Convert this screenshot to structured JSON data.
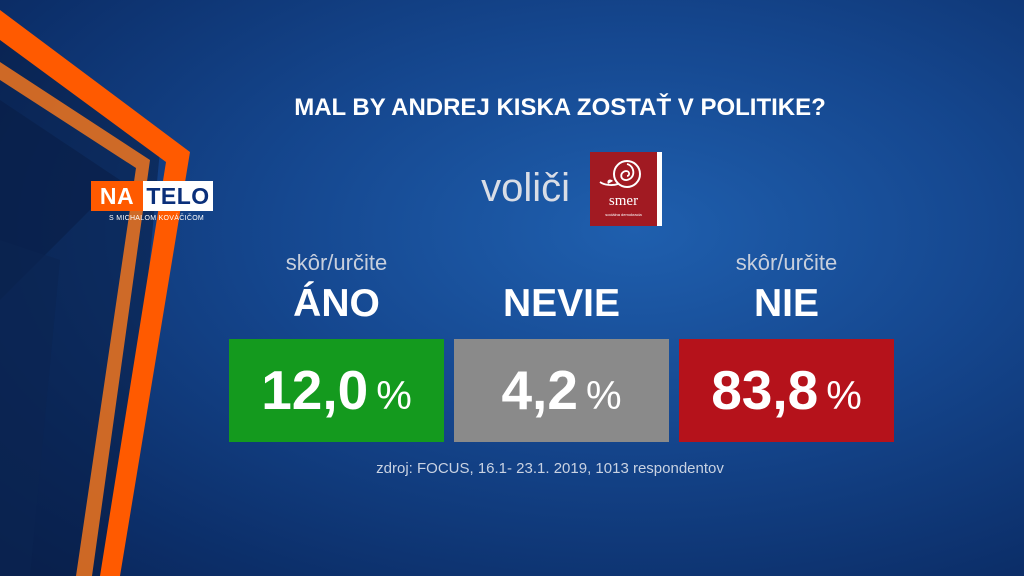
{
  "branding": {
    "logo_left": "NA",
    "logo_right": "TELO",
    "logo_subtitle": "S MICHALOM KOVÁČIČOM",
    "accent_orange": "#ff5a00"
  },
  "party": {
    "name": "smer",
    "tagline": "sociálna demokracia",
    "color": "#a11a22"
  },
  "chart_data": {
    "type": "table",
    "title": "MAL BY ANDREJ KISKA ZOSTAŤ V POLITIKE?",
    "subtitle": "voliči",
    "unit": "%",
    "categories": [
      {
        "sublabel": "skôr/určite",
        "label": "ÁNO",
        "value": 12.0,
        "value_text": "12,0",
        "color": "#149a1e"
      },
      {
        "sublabel": "",
        "label": "NEVIE",
        "value": 4.2,
        "value_text": "4,2",
        "color": "#8a8a8a"
      },
      {
        "sublabel": "skôr/určite",
        "label": "NIE",
        "value": 83.8,
        "value_text": "83,8",
        "color": "#b5121b"
      }
    ],
    "source": "zdroj: FOCUS, 16.1- 23.1. 2019, 1013 respondentov"
  }
}
